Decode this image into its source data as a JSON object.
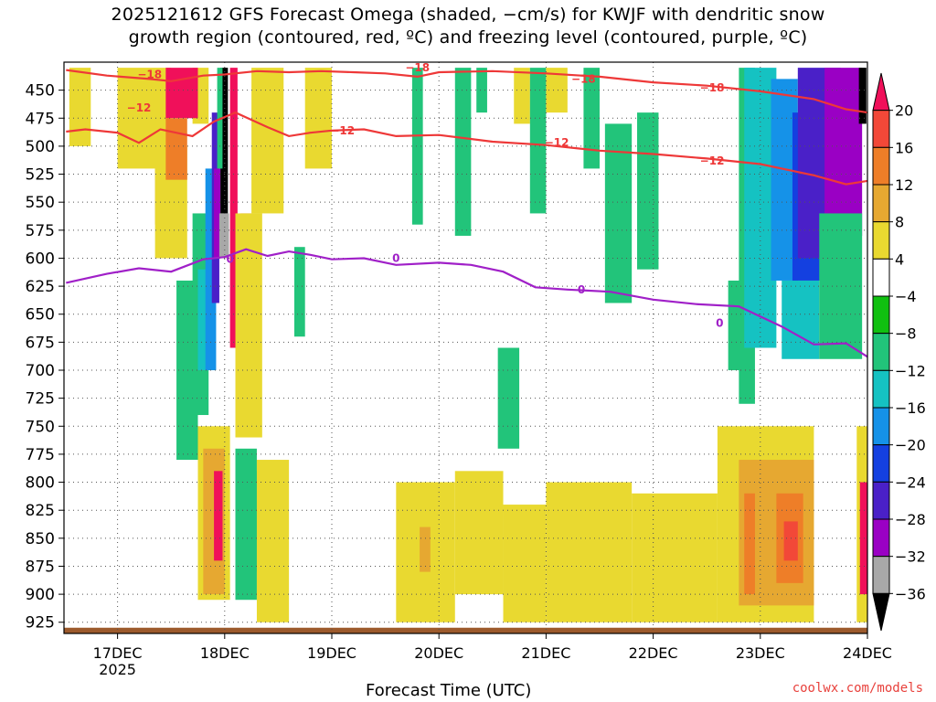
{
  "title_line1": "2025121612 GFS Forecast Omega (shaded, −cm/s) for KWJF with dendritic snow",
  "title_line2": "growth region (contoured, red, ºC) and freezing level (contoured, purple, ºC)",
  "watermark": "coolwx.com/models",
  "chart_data": {
    "type": "heatmap",
    "xlabel": "Forecast Time (UTC)",
    "ylabel": "Pressure (hPa)",
    "x_ticks": [
      "17DEC",
      "18DEC",
      "19DEC",
      "20DEC",
      "21DEC",
      "22DEC",
      "23DEC",
      "24DEC"
    ],
    "x_subtitle": "2025",
    "x_range_days": [
      16.5,
      24.0
    ],
    "y_ticks": [
      450,
      475,
      500,
      525,
      550,
      575,
      600,
      625,
      650,
      675,
      700,
      725,
      750,
      775,
      800,
      825,
      850,
      875,
      900,
      925
    ],
    "y_range": [
      425,
      935
    ],
    "colorbar": {
      "labels": [
        "20",
        "16",
        "12",
        "8",
        "4",
        "−4",
        "−8",
        "−12",
        "−16",
        "−20",
        "−24",
        "−28",
        "−32",
        "−36"
      ],
      "levels": [
        20,
        16,
        12,
        8,
        4,
        -4,
        -8,
        -12,
        -16,
        -20,
        -24,
        -28,
        -32,
        -36
      ],
      "colors": [
        "#f0105a",
        "#f24838",
        "#ee7e28",
        "#e6a831",
        "#e9d930",
        "#ffffff",
        "#10c010",
        "#22c47a",
        "#15c2c2",
        "#1592e8",
        "#1440e0",
        "#4a20c8",
        "#9a00c4",
        "#a8a8a8",
        "#000000"
      ]
    },
    "contours": [
      {
        "label": "−18",
        "color": "#ee3838",
        "points": [
          [
            16.52,
            432
          ],
          [
            16.9,
            437
          ],
          [
            17.3,
            440
          ],
          [
            17.5,
            442
          ],
          [
            17.8,
            437
          ],
          [
            18.0,
            436
          ],
          [
            18.3,
            433
          ],
          [
            18.6,
            434
          ],
          [
            18.9,
            433
          ],
          [
            19.2,
            434
          ],
          [
            19.5,
            435
          ],
          [
            19.8,
            438
          ],
          [
            20.0,
            434
          ],
          [
            20.5,
            433
          ],
          [
            21.0,
            435
          ],
          [
            21.5,
            438
          ],
          [
            22.0,
            443
          ],
          [
            22.5,
            446
          ],
          [
            23.0,
            451
          ],
          [
            23.5,
            458
          ],
          [
            23.8,
            467
          ],
          [
            24.0,
            470
          ]
        ]
      },
      {
        "label": "−12",
        "color": "#ee3838",
        "points": [
          [
            16.52,
            487
          ],
          [
            16.7,
            485
          ],
          [
            17.0,
            488
          ],
          [
            17.2,
            497
          ],
          [
            17.4,
            485
          ],
          [
            17.7,
            491
          ],
          [
            17.9,
            478
          ],
          [
            18.1,
            470
          ],
          [
            18.4,
            483
          ],
          [
            18.6,
            491
          ],
          [
            18.8,
            488
          ],
          [
            19.0,
            486
          ],
          [
            19.3,
            485
          ],
          [
            19.6,
            491
          ],
          [
            20.0,
            490
          ],
          [
            20.5,
            496
          ],
          [
            21.0,
            499
          ],
          [
            21.5,
            504
          ],
          [
            22.0,
            507
          ],
          [
            22.5,
            511
          ],
          [
            23.0,
            516
          ],
          [
            23.5,
            526
          ],
          [
            23.8,
            534
          ],
          [
            24.0,
            531
          ]
        ]
      },
      {
        "label": "0",
        "color": "#a020c8",
        "points": [
          [
            16.52,
            622
          ],
          [
            16.9,
            614
          ],
          [
            17.2,
            609
          ],
          [
            17.5,
            612
          ],
          [
            17.8,
            601
          ],
          [
            18.0,
            599
          ],
          [
            18.2,
            592
          ],
          [
            18.4,
            598
          ],
          [
            18.6,
            594
          ],
          [
            18.8,
            597
          ],
          [
            19.0,
            601
          ],
          [
            19.3,
            600
          ],
          [
            19.6,
            606
          ],
          [
            20.0,
            604
          ],
          [
            20.3,
            606
          ],
          [
            20.6,
            612
          ],
          [
            20.9,
            626
          ],
          [
            21.2,
            628
          ],
          [
            21.6,
            630
          ],
          [
            22.0,
            637
          ],
          [
            22.4,
            641
          ],
          [
            22.8,
            643
          ],
          [
            23.0,
            652
          ],
          [
            23.2,
            661
          ],
          [
            23.5,
            677
          ],
          [
            23.8,
            676
          ],
          [
            24.0,
            688
          ]
        ]
      }
    ],
    "contour_labels": [
      {
        "text": "−18",
        "x": 17.3,
        "p": 436,
        "color": "#ee3838"
      },
      {
        "text": "−18",
        "x": 19.8,
        "p": 430,
        "color": "#ee3838"
      },
      {
        "text": "−18",
        "x": 21.35,
        "p": 440,
        "color": "#ee3838"
      },
      {
        "text": "−18",
        "x": 22.55,
        "p": 448,
        "color": "#ee3838"
      },
      {
        "text": "−12",
        "x": 17.2,
        "p": 466,
        "color": "#ee3838"
      },
      {
        "text": "−12",
        "x": 19.1,
        "p": 486,
        "color": "#ee3838"
      },
      {
        "text": "−12",
        "x": 21.1,
        "p": 497,
        "color": "#ee3838"
      },
      {
        "text": "−12",
        "x": 22.55,
        "p": 513,
        "color": "#ee3838"
      },
      {
        "text": "0",
        "x": 18.05,
        "p": 601,
        "color": "#a020c8"
      },
      {
        "text": "0",
        "x": 19.6,
        "p": 600,
        "color": "#a020c8"
      },
      {
        "text": "0",
        "x": 21.33,
        "p": 628,
        "color": "#a020c8"
      },
      {
        "text": "0",
        "x": 22.62,
        "p": 658,
        "color": "#a020c8"
      }
    ],
    "shaded_regions": [
      {
        "level": 4,
        "x0": 16.55,
        "x1": 16.75,
        "p0": 430,
        "p1": 500
      },
      {
        "level": 4,
        "x0": 17.0,
        "x1": 17.5,
        "p0": 430,
        "p1": 520
      },
      {
        "level": 8,
        "x0": 17.35,
        "x1": 17.55,
        "p0": 520,
        "p1": 570
      },
      {
        "level": 4,
        "x0": 17.35,
        "x1": 17.65,
        "p0": 500,
        "p1": 600
      },
      {
        "level": 4,
        "x0": 17.7,
        "x1": 17.85,
        "p0": 430,
        "p1": 480
      },
      {
        "level": 20,
        "x0": 17.45,
        "x1": 17.75,
        "p0": 430,
        "p1": 475
      },
      {
        "level": 12,
        "x0": 17.45,
        "x1": 17.65,
        "p0": 475,
        "p1": 530
      },
      {
        "level": 4,
        "x0": 18.25,
        "x1": 18.55,
        "p0": 430,
        "p1": 560
      },
      {
        "level": 4,
        "x0": 18.75,
        "x1": 19.0,
        "p0": 430,
        "p1": 520
      },
      {
        "level": -8,
        "x0": 17.55,
        "x1": 17.75,
        "p0": 620,
        "p1": 780
      },
      {
        "level": -8,
        "x0": 17.7,
        "x1": 17.85,
        "p0": 560,
        "p1": 740
      },
      {
        "level": -12,
        "x0": 17.75,
        "x1": 17.85,
        "p0": 610,
        "p1": 700
      },
      {
        "level": -16,
        "x0": 17.82,
        "x1": 17.92,
        "p0": 520,
        "p1": 700
      },
      {
        "level": -24,
        "x0": 17.88,
        "x1": 17.95,
        "p0": 470,
        "p1": 640
      },
      {
        "level": -28,
        "x0": 17.9,
        "x1": 17.96,
        "p0": 520,
        "p1": 600
      },
      {
        "level": -36,
        "x0": 17.96,
        "x1": 18.03,
        "p0": 430,
        "p1": 560
      },
      {
        "level": -32,
        "x0": 17.95,
        "x1": 18.04,
        "p0": 560,
        "p1": 600
      },
      {
        "level": -8,
        "x0": 17.93,
        "x1": 17.98,
        "p0": 430,
        "p1": 520
      },
      {
        "level": 20,
        "x0": 18.05,
        "x1": 18.12,
        "p0": 430,
        "p1": 680
      },
      {
        "level": 20,
        "x0": 18.15,
        "x1": 18.25,
        "p0": 560,
        "p1": 720
      },
      {
        "level": 4,
        "x0": 18.1,
        "x1": 18.35,
        "p0": 560,
        "p1": 760
      },
      {
        "level": 4,
        "x0": 17.75,
        "x1": 18.05,
        "p0": 750,
        "p1": 905
      },
      {
        "level": 8,
        "x0": 17.8,
        "x1": 18.0,
        "p0": 770,
        "p1": 900
      },
      {
        "level": 20,
        "x0": 17.9,
        "x1": 17.98,
        "p0": 790,
        "p1": 870
      },
      {
        "level": -12,
        "x0": 18.1,
        "x1": 18.3,
        "p0": 790,
        "p1": 880
      },
      {
        "level": -8,
        "x0": 18.1,
        "x1": 18.3,
        "p0": 770,
        "p1": 905
      },
      {
        "level": -8,
        "x0": 18.65,
        "x1": 18.75,
        "p0": 590,
        "p1": 670
      },
      {
        "level": -8,
        "x0": 19.75,
        "x1": 19.85,
        "p0": 430,
        "p1": 570
      },
      {
        "level": -8,
        "x0": 20.15,
        "x1": 20.3,
        "p0": 430,
        "p1": 580
      },
      {
        "level": -8,
        "x0": 20.35,
        "x1": 20.45,
        "p0": 430,
        "p1": 470
      },
      {
        "level": -8,
        "x0": 20.55,
        "x1": 20.75,
        "p0": 680,
        "p1": 770
      },
      {
        "level": 4,
        "x0": 20.7,
        "x1": 20.85,
        "p0": 430,
        "p1": 480
      },
      {
        "level": -8,
        "x0": 20.85,
        "x1": 21.0,
        "p0": 430,
        "p1": 560
      },
      {
        "level": 4,
        "x0": 21.0,
        "x1": 21.2,
        "p0": 430,
        "p1": 470
      },
      {
        "level": -8,
        "x0": 21.35,
        "x1": 21.5,
        "p0": 430,
        "p1": 520
      },
      {
        "level": -8,
        "x0": 21.55,
        "x1": 21.8,
        "p0": 480,
        "p1": 640
      },
      {
        "level": -8,
        "x0": 21.85,
        "x1": 22.05,
        "p0": 470,
        "p1": 610
      },
      {
        "level": -8,
        "x0": 22.7,
        "x1": 22.85,
        "p0": 620,
        "p1": 700
      },
      {
        "level": -8,
        "x0": 22.8,
        "x1": 22.95,
        "p0": 430,
        "p1": 730
      },
      {
        "level": -12,
        "x0": 22.85,
        "x1": 23.15,
        "p0": 430,
        "p1": 680
      },
      {
        "level": -16,
        "x0": 23.1,
        "x1": 23.35,
        "p0": 440,
        "p1": 620
      },
      {
        "level": -20,
        "x0": 23.3,
        "x1": 23.6,
        "p0": 470,
        "p1": 620
      },
      {
        "level": -24,
        "x0": 23.35,
        "x1": 23.75,
        "p0": 430,
        "p1": 600
      },
      {
        "level": -28,
        "x0": 23.6,
        "x1": 23.95,
        "p0": 430,
        "p1": 580
      },
      {
        "level": -12,
        "x0": 23.2,
        "x1": 23.55,
        "p0": 620,
        "p1": 690
      },
      {
        "level": -8,
        "x0": 23.55,
        "x1": 23.95,
        "p0": 560,
        "p1": 690
      },
      {
        "level": -36,
        "x0": 23.92,
        "x1": 23.99,
        "p0": 430,
        "p1": 480
      },
      {
        "level": 4,
        "x0": 18.3,
        "x1": 18.6,
        "p0": 780,
        "p1": 925
      },
      {
        "level": 4,
        "x0": 19.6,
        "x1": 20.15,
        "p0": 800,
        "p1": 925
      },
      {
        "level": 8,
        "x0": 19.82,
        "x1": 19.92,
        "p0": 840,
        "p1": 880
      },
      {
        "level": 4,
        "x0": 20.15,
        "x1": 20.6,
        "p0": 790,
        "p1": 900
      },
      {
        "level": 4,
        "x0": 20.6,
        "x1": 21.0,
        "p0": 820,
        "p1": 925
      },
      {
        "level": 4,
        "x0": 21.0,
        "x1": 21.8,
        "p0": 800,
        "p1": 925
      },
      {
        "level": 4,
        "x0": 21.8,
        "x1": 22.6,
        "p0": 810,
        "p1": 925
      },
      {
        "level": 4,
        "x0": 22.6,
        "x1": 23.5,
        "p0": 750,
        "p1": 925
      },
      {
        "level": 8,
        "x0": 22.8,
        "x1": 23.5,
        "p0": 780,
        "p1": 910
      },
      {
        "level": 12,
        "x0": 22.85,
        "x1": 22.95,
        "p0": 810,
        "p1": 900
      },
      {
        "level": 12,
        "x0": 23.15,
        "x1": 23.4,
        "p0": 810,
        "p1": 890
      },
      {
        "level": 16,
        "x0": 23.22,
        "x1": 23.35,
        "p0": 835,
        "p1": 870
      },
      {
        "level": 4,
        "x0": 23.9,
        "x1": 24.0,
        "p0": 750,
        "p1": 925
      },
      {
        "level": 20,
        "x0": 23.93,
        "x1": 24.0,
        "p0": 800,
        "p1": 900
      }
    ],
    "ground_band_level": 925
  }
}
